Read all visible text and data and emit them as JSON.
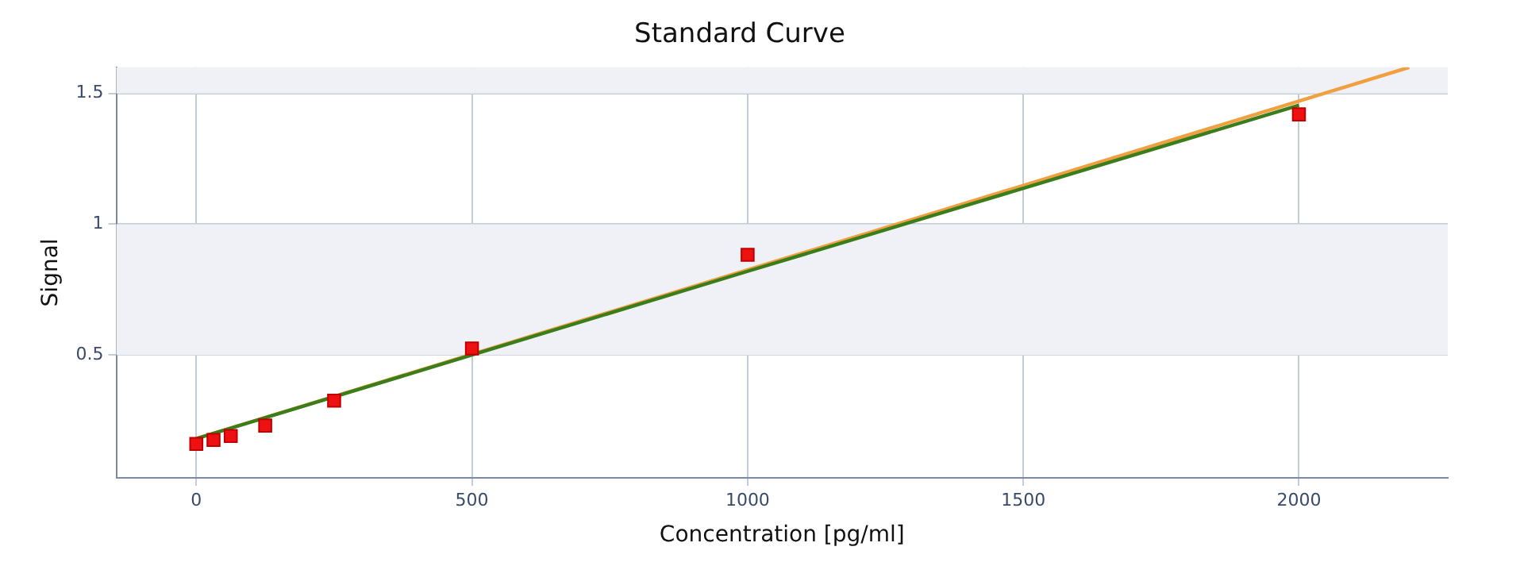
{
  "chart_data": {
    "type": "scatter",
    "title": "Standard Curve",
    "xlabel": "Concentration [pg/ml]",
    "ylabel": "Signal",
    "xlim": [
      -145,
      2270
    ],
    "xticks": [
      0,
      500,
      1000,
      1500,
      2000
    ],
    "ylim": [
      0.03,
      1.6
    ],
    "yticks": [
      0.5,
      1,
      1.5
    ],
    "grid": true,
    "legend": false,
    "bands": [
      {
        "axis": "y",
        "from": 0.5,
        "to": 1,
        "color": "#eff1f6"
      },
      {
        "axis": "y",
        "from": 1.5,
        "to": 1.6,
        "color": "#eff1f6"
      }
    ],
    "series": [
      {
        "type": "line",
        "marker": "none",
        "color": "#f0a040",
        "x": [
          0,
          2200
        ],
        "values": [
          0.18,
          1.6
        ]
      },
      {
        "type": "line",
        "marker": "none",
        "color": "#3a7d1a",
        "x": [
          0,
          500,
          1000,
          2000
        ],
        "values": [
          0.18,
          0.5,
          0.82,
          1.455
        ]
      },
      {
        "marker": "square",
        "color": "#ee1111",
        "x": [
          0,
          31.25,
          62.5,
          125,
          250,
          500,
          1000,
          2000
        ],
        "values": [
          0.16,
          0.175,
          0.19,
          0.23,
          0.325,
          0.525,
          0.883,
          1.42
        ]
      }
    ]
  }
}
